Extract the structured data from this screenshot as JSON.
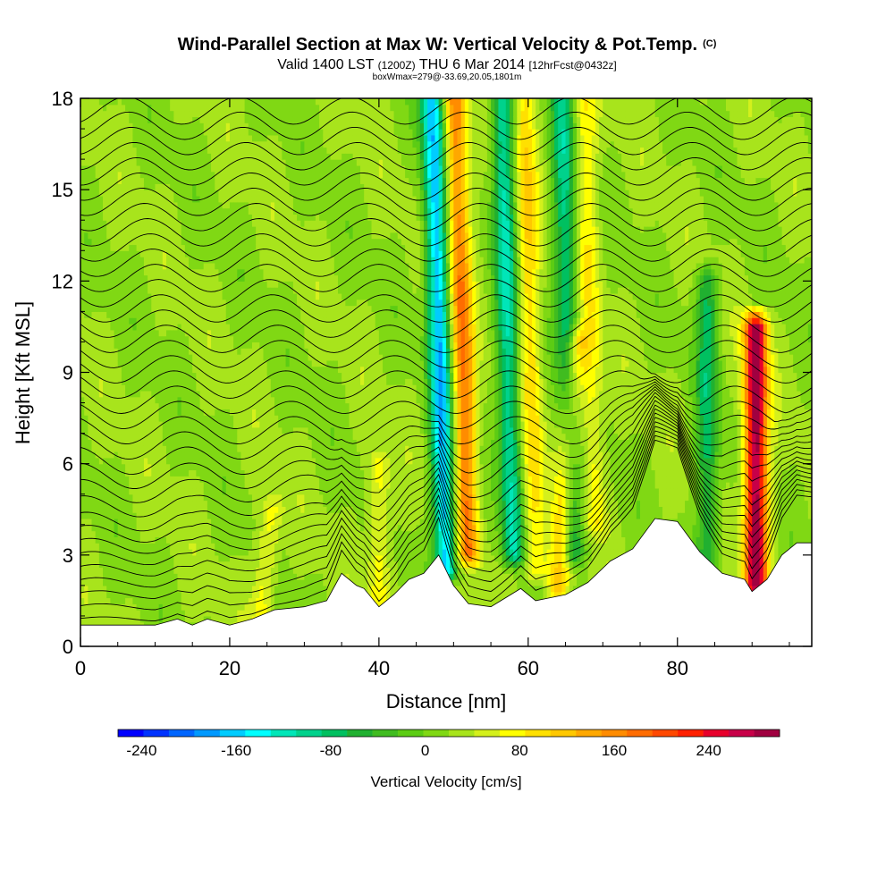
{
  "chart_data": {
    "type": "heatmap",
    "title": "Wind-Parallel Section at Max W: Vertical Velocity & Pot.Temp.",
    "title_mark": "(C)",
    "subtitle": {
      "valid": "Valid 1400 LST",
      "utc": "(1200Z)",
      "date": "THU 6 Mar 2014",
      "forecast": "[12hrFcst@0432z]"
    },
    "box_info": "boxWmax=279@-33.69,20.05,1801m",
    "xlabel": "Distance [nm]",
    "ylabel": "Height [Kft MSL]",
    "xlim": [
      0,
      98
    ],
    "ylim": [
      0,
      18
    ],
    "x_ticks": [
      "0",
      "20",
      "40",
      "60",
      "80"
    ],
    "y_ticks": [
      "0",
      "3",
      "6",
      "9",
      "12",
      "15",
      "18"
    ],
    "colorbar": {
      "label": "Vertical Velocity [cm/s]",
      "ticks": [
        "-240",
        "-160",
        "-80",
        "0",
        "80",
        "160",
        "240"
      ],
      "range": [
        -260,
        300
      ],
      "colors": [
        "#0000ff",
        "#0033ff",
        "#0066ff",
        "#0099ff",
        "#00ccff",
        "#00ffff",
        "#00e6b8",
        "#00d28c",
        "#00c060",
        "#20b030",
        "#40bc20",
        "#5ccc14",
        "#80d814",
        "#a8e41c",
        "#d4f01c",
        "#ffff00",
        "#ffe000",
        "#ffc800",
        "#ffa800",
        "#ff8c00",
        "#ff6c00",
        "#ff4800",
        "#ff2000",
        "#e8002c",
        "#c80048",
        "#a00040"
      ]
    },
    "terrain_kft": [
      [
        0,
        0.7
      ],
      [
        10,
        0.7
      ],
      [
        13,
        0.9
      ],
      [
        15,
        0.7
      ],
      [
        17,
        0.9
      ],
      [
        20,
        0.7
      ],
      [
        23,
        0.9
      ],
      [
        26,
        1.2
      ],
      [
        30,
        1.3
      ],
      [
        33,
        1.5
      ],
      [
        35,
        2.4
      ],
      [
        37,
        2.0
      ],
      [
        38,
        1.9
      ],
      [
        40,
        1.3
      ],
      [
        42,
        1.7
      ],
      [
        44,
        2.2
      ],
      [
        46,
        2.4
      ],
      [
        48,
        3.0
      ],
      [
        50,
        2.0
      ],
      [
        52,
        1.4
      ],
      [
        55,
        1.3
      ],
      [
        57,
        1.6
      ],
      [
        59,
        1.9
      ],
      [
        61,
        1.5
      ],
      [
        63,
        1.6
      ],
      [
        65,
        1.7
      ],
      [
        68,
        2.1
      ],
      [
        71,
        2.8
      ],
      [
        74,
        3.2
      ],
      [
        77,
        4.2
      ],
      [
        80,
        4.1
      ],
      [
        83,
        3.1
      ],
      [
        86,
        2.4
      ],
      [
        89,
        2.2
      ],
      [
        90,
        1.8
      ],
      [
        92,
        2.2
      ],
      [
        94,
        3.0
      ],
      [
        96,
        3.4
      ],
      [
        98,
        3.4
      ]
    ],
    "velocity_features": [
      {
        "label": "downdraft",
        "x": 49,
        "z_top": 18,
        "z_bottom": 2.5,
        "peak": -190,
        "slant": -0.12
      },
      {
        "label": "updraft",
        "x": 52,
        "z_top": 18,
        "z_bottom": 3.0,
        "peak": 150,
        "slant": -0.12
      },
      {
        "label": "downdraft",
        "x": 58,
        "z_top": 18,
        "z_bottom": 3.0,
        "peak": -130,
        "slant": -0.1
      },
      {
        "label": "updraft",
        "x": 61,
        "z_top": 18,
        "z_bottom": 2.5,
        "peak": 80,
        "slant": -0.1
      },
      {
        "label": "updraft",
        "x": 64,
        "z_top": 10,
        "z_bottom": 1.8,
        "peak": 100,
        "slant": 0.3
      },
      {
        "label": "downdraft",
        "x": 66,
        "z_top": 18,
        "z_bottom": 3.0,
        "peak": -110,
        "slant": -0.1
      },
      {
        "label": "updraft",
        "x": 69,
        "z_top": 18,
        "z_bottom": 4.0,
        "peak": 60,
        "slant": -0.1
      },
      {
        "label": "downdraft",
        "x": 84,
        "z_top": 12,
        "z_bottom": 2.0,
        "peak": -90,
        "slant": 0.0
      },
      {
        "label": "updraft",
        "x": 90.5,
        "z_top": 10.5,
        "z_bottom": 2.0,
        "peak": 279,
        "slant": 0.0
      },
      {
        "label": "updraft",
        "x": 24,
        "z_top": 4.5,
        "z_bottom": 0.5,
        "peak": 60,
        "slant": 0.4
      },
      {
        "label": "updraft",
        "x": 40,
        "z_top": 6.0,
        "z_bottom": 1.5,
        "peak": 60,
        "slant": 0.0
      }
    ],
    "theta_contours_kft": [
      0.9,
      1.3,
      1.7,
      2.1,
      2.5,
      2.9,
      3.3,
      3.7,
      4.1,
      4.6,
      5.1,
      5.6,
      6.1,
      6.6,
      7.1,
      7.6,
      8.1,
      8.6,
      9.1,
      9.6,
      10.1,
      10.6,
      11.1,
      11.6,
      12.1,
      12.6,
      13.1,
      13.6,
      14.1,
      14.6,
      15.1,
      15.6,
      16.1,
      16.6,
      17.1,
      17.6
    ]
  }
}
